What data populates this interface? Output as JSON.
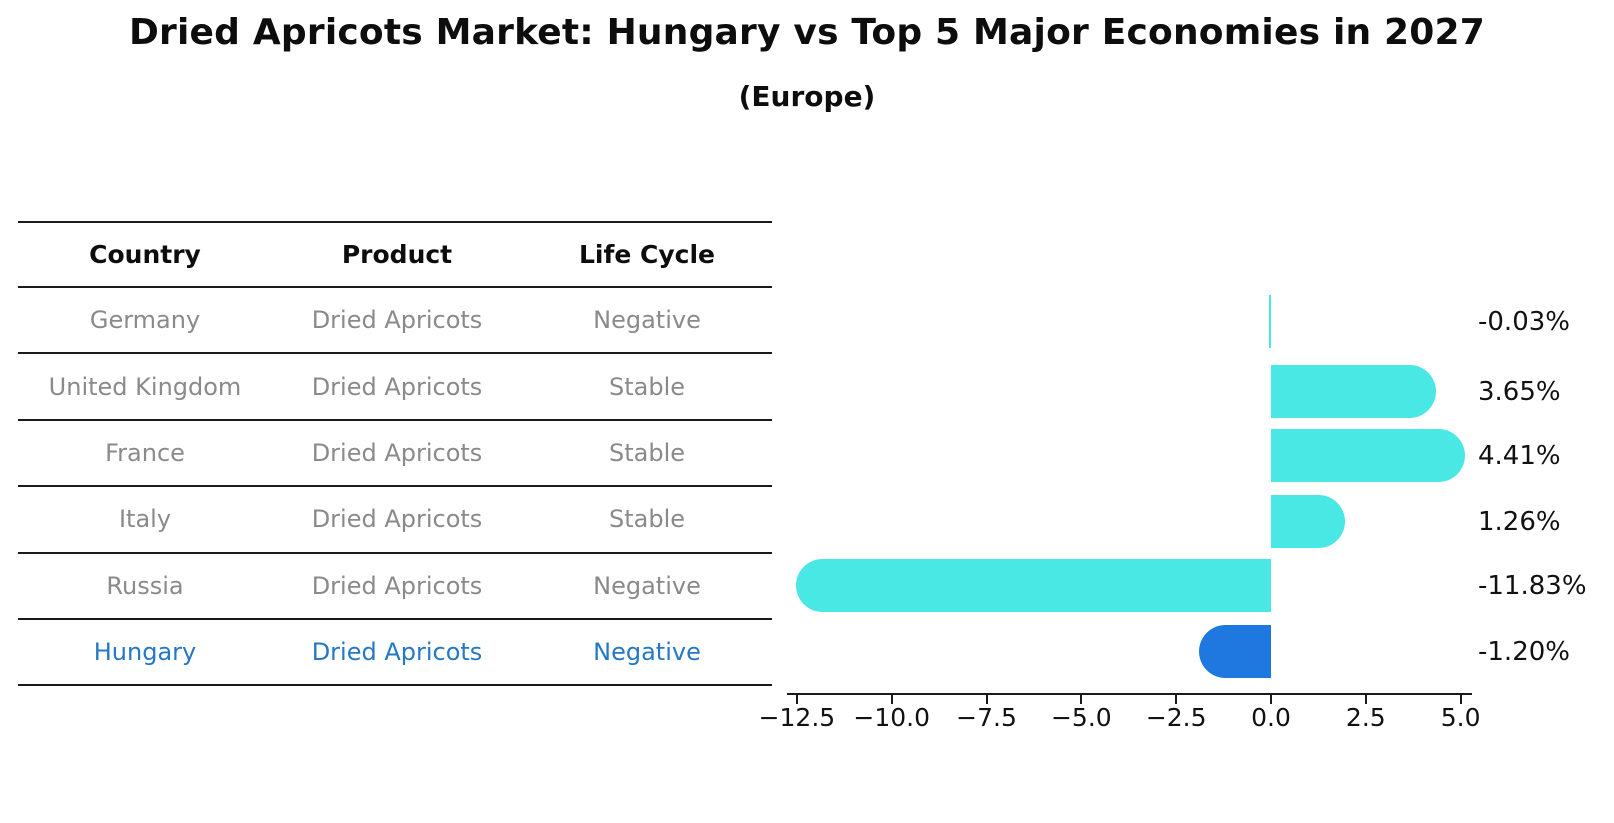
{
  "title": "Dried Apricots Market: Hungary vs Top 5 Major Economies in 2027",
  "subtitle": "(Europe)",
  "table": {
    "headers": [
      "Country",
      "Product",
      "Life Cycle"
    ],
    "rows": [
      {
        "country": "Germany",
        "product": "Dried Apricots",
        "life_cycle": "Negative"
      },
      {
        "country": "United Kingdom",
        "product": "Dried Apricots",
        "life_cycle": "Stable"
      },
      {
        "country": "France",
        "product": "Dried Apricots",
        "life_cycle": "Stable"
      },
      {
        "country": "Italy",
        "product": "Dried Apricots",
        "life_cycle": "Stable"
      },
      {
        "country": "Russia",
        "product": "Dried Apricots",
        "life_cycle": "Negative"
      },
      {
        "country": "Hungary",
        "product": "Dried Apricots",
        "life_cycle": "Negative"
      }
    ],
    "highlight_row_index": 5
  },
  "chart_data": {
    "type": "bar",
    "orientation": "horizontal",
    "title": "Dried Apricots Market: Hungary vs Top 5 Major Economies in 2027 (Europe)",
    "categories": [
      "Germany",
      "United Kingdom",
      "France",
      "Italy",
      "Russia",
      "Hungary"
    ],
    "values": [
      -0.03,
      3.65,
      4.41,
      1.26,
      -11.83,
      -1.2
    ],
    "value_labels": [
      "-0.03%",
      "3.65%",
      "4.41%",
      "1.26%",
      "-11.83%",
      "-1.20%"
    ],
    "unit": "percent",
    "x_ticks": [
      -12.5,
      -10.0,
      -7.5,
      -5.0,
      -2.5,
      0.0,
      2.5,
      5.0
    ],
    "x_tick_labels": [
      "−12.5",
      "−10.0",
      "−7.5",
      "−5.0",
      "−2.5",
      "0.0",
      "2.5",
      "5.0"
    ],
    "xlim": [
      -12.8,
      5.3
    ],
    "grid": false,
    "legend": false,
    "bar_color": "#4AE8E4",
    "highlight_color": "#1E78E0",
    "highlight_index": 5,
    "highlight_border_style": "dotted"
  },
  "colors": {
    "background": "#ffffff",
    "bar": "#4AE8E4",
    "highlight_bar": "#1E78E0",
    "table_text": "#8a8a8a",
    "header_text": "#0d0d0d",
    "highlight_text": "#2478C4",
    "axis_line": "#1a1a1a"
  }
}
